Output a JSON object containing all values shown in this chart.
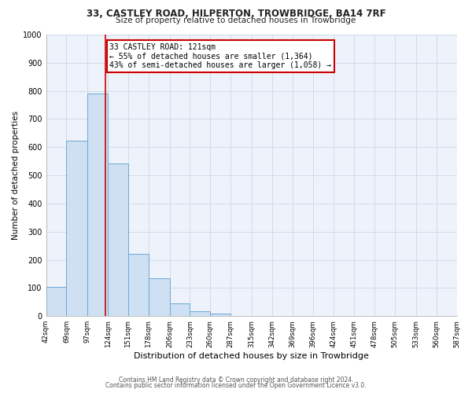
{
  "title1": "33, CASTLEY ROAD, HILPERTON, TROWBRIDGE, BA14 7RF",
  "title2": "Size of property relative to detached houses in Trowbridge",
  "xlabel": "Distribution of detached houses by size in Trowbridge",
  "ylabel": "Number of detached properties",
  "bar_edges": [
    42,
    69,
    97,
    124,
    151,
    178,
    206,
    233,
    260,
    287,
    315,
    342,
    369,
    396,
    424,
    451,
    478,
    505,
    533,
    560,
    587
  ],
  "bar_heights": [
    103,
    622,
    790,
    543,
    220,
    135,
    45,
    18,
    10,
    0,
    0,
    0,
    0,
    0,
    0,
    0,
    0,
    0,
    0,
    0
  ],
  "bar_color": "#cfe0f3",
  "bar_edgecolor": "#6aaad4",
  "property_line_x": 121,
  "annotation_title": "33 CASTLEY ROAD: 121sqm",
  "annotation_line1": "← 55% of detached houses are smaller (1,364)",
  "annotation_line2": "43% of semi-detached houses are larger (1,058) →",
  "annotation_box_facecolor": "#ffffff",
  "annotation_box_edgecolor": "#cc0000",
  "vline_color": "#cc0000",
  "ylim": [
    0,
    1000
  ],
  "xlim": [
    42,
    587
  ],
  "tick_labels": [
    "42sqm",
    "69sqm",
    "97sqm",
    "124sqm",
    "151sqm",
    "178sqm",
    "206sqm",
    "233sqm",
    "260sqm",
    "287sqm",
    "315sqm",
    "342sqm",
    "369sqm",
    "396sqm",
    "424sqm",
    "451sqm",
    "478sqm",
    "505sqm",
    "533sqm",
    "560sqm",
    "587sqm"
  ],
  "tick_positions": [
    42,
    69,
    97,
    124,
    151,
    178,
    206,
    233,
    260,
    287,
    315,
    342,
    369,
    396,
    424,
    451,
    478,
    505,
    533,
    560,
    587
  ],
  "yticks": [
    0,
    100,
    200,
    300,
    400,
    500,
    600,
    700,
    800,
    900,
    1000
  ],
  "footer_line1": "Contains HM Land Registry data © Crown copyright and database right 2024.",
  "footer_line2": "Contains public sector information licensed under the Open Government Licence v3.0.",
  "grid_color": "#d0dcea",
  "bg_color": "#eef2fa",
  "fig_bg_color": "#ffffff"
}
